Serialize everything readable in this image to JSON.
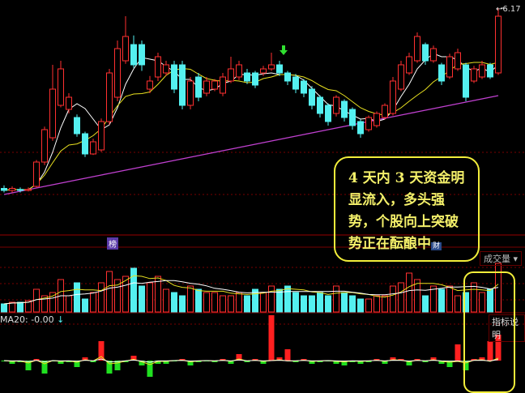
{
  "chart_data": {
    "type": "candlestick",
    "max_price_label": "6.17",
    "candle_colors": {
      "up": "#ff3030",
      "down": "#54f0f0"
    },
    "candles": [
      [
        4.39,
        4.37,
        4.42,
        4.35
      ],
      [
        4.37,
        4.39,
        4.41,
        4.35
      ],
      [
        4.38,
        4.37,
        4.4,
        4.35
      ],
      [
        4.37,
        4.38,
        4.4,
        4.36
      ],
      [
        4.41,
        4.65,
        4.67,
        4.4
      ],
      [
        4.65,
        4.97,
        5.0,
        4.62
      ],
      [
        4.89,
        5.37,
        5.61,
        4.86
      ],
      [
        5.21,
        5.57,
        5.65,
        5.19
      ],
      [
        5.17,
        5.29,
        5.33,
        5.13
      ],
      [
        5.09,
        4.93,
        5.12,
        4.9
      ],
      [
        4.93,
        4.73,
        4.95,
        4.7
      ],
      [
        4.73,
        4.85,
        4.88,
        4.72
      ],
      [
        4.77,
        5.05,
        5.08,
        4.75
      ],
      [
        5.05,
        5.53,
        5.57,
        5.02
      ],
      [
        5.29,
        5.77,
        5.85,
        5.25
      ],
      [
        5.65,
        5.89,
        6.09,
        5.62
      ],
      [
        5.81,
        5.61,
        5.9,
        5.58
      ],
      [
        5.81,
        5.61,
        5.85,
        5.55
      ],
      [
        5.37,
        5.45,
        5.5,
        5.33
      ],
      [
        5.49,
        5.69,
        5.73,
        5.45
      ],
      [
        5.53,
        5.61,
        5.65,
        5.5
      ],
      [
        5.61,
        5.37,
        5.65,
        5.33
      ],
      [
        5.61,
        5.21,
        5.65,
        5.17
      ],
      [
        5.21,
        5.45,
        5.49,
        5.17
      ],
      [
        5.49,
        5.29,
        5.53,
        5.25
      ],
      [
        5.33,
        5.45,
        5.49,
        5.3
      ],
      [
        5.37,
        5.45,
        5.47,
        5.35
      ],
      [
        5.33,
        5.49,
        5.53,
        5.3
      ],
      [
        5.45,
        5.57,
        5.69,
        5.43
      ],
      [
        5.49,
        5.61,
        5.65,
        5.46
      ],
      [
        5.53,
        5.45,
        5.57,
        5.42
      ],
      [
        5.53,
        5.41,
        5.55,
        5.38
      ],
      [
        5.53,
        5.57,
        5.6,
        5.5
      ],
      [
        5.57,
        5.61,
        5.73,
        5.55
      ],
      [
        5.61,
        5.53,
        5.65,
        5.5
      ],
      [
        5.53,
        5.45,
        5.55,
        5.41
      ],
      [
        5.49,
        5.37,
        5.52,
        5.33
      ],
      [
        5.45,
        5.33,
        5.47,
        5.29
      ],
      [
        5.37,
        5.21,
        5.4,
        5.17
      ],
      [
        5.29,
        5.13,
        5.31,
        5.09
      ],
      [
        5.21,
        5.05,
        5.23,
        5.01
      ],
      [
        5.13,
        5.29,
        5.31,
        5.1
      ],
      [
        5.25,
        5.09,
        5.27,
        5.05
      ],
      [
        5.17,
        5.01,
        5.19,
        4.97
      ],
      [
        5.05,
        4.93,
        5.07,
        4.89
      ],
      [
        4.97,
        5.09,
        5.11,
        4.95
      ],
      [
        5.01,
        5.13,
        5.15,
        4.99
      ],
      [
        5.09,
        5.21,
        5.23,
        5.07
      ],
      [
        5.13,
        5.45,
        5.49,
        5.11
      ],
      [
        5.37,
        5.61,
        5.65,
        5.35
      ],
      [
        5.53,
        5.69,
        5.73,
        5.51
      ],
      [
        5.65,
        5.89,
        5.93,
        5.63
      ],
      [
        5.81,
        5.65,
        5.83,
        5.61
      ],
      [
        5.65,
        5.77,
        5.8,
        5.63
      ],
      [
        5.61,
        5.45,
        5.63,
        5.41
      ],
      [
        5.49,
        5.69,
        5.72,
        5.47
      ],
      [
        5.57,
        5.73,
        5.77,
        5.55
      ],
      [
        5.61,
        5.29,
        5.63,
        5.25
      ],
      [
        5.45,
        5.57,
        5.6,
        5.43
      ],
      [
        5.49,
        5.61,
        5.65,
        5.47
      ],
      [
        5.61,
        5.49,
        5.63,
        5.47
      ],
      [
        5.53,
        6.09,
        6.17,
        5.51
      ]
    ],
    "volume": [
      5,
      6,
      6,
      7,
      14,
      10,
      12,
      20,
      10,
      18,
      8,
      12,
      18,
      25,
      20,
      22,
      27,
      16,
      18,
      22,
      14,
      12,
      10,
      16,
      14,
      12,
      12,
      10,
      10,
      12,
      10,
      14,
      12,
      16,
      14,
      16,
      12,
      10,
      10,
      12,
      10,
      16,
      12,
      10,
      8,
      8,
      10,
      10,
      16,
      18,
      24,
      20,
      10,
      16,
      14,
      16,
      10,
      12,
      18,
      12,
      14,
      30
    ],
    "volume_label": "成交量",
    "indicator_label": "MA20: -0.00",
    "indicator_values": [
      0,
      -2,
      -1,
      -6,
      1,
      -8,
      0,
      -2,
      -1,
      -4,
      2,
      -1,
      10,
      -8,
      -6,
      -1,
      3,
      -3,
      -10,
      -2,
      -2,
      0,
      1,
      -3,
      -1,
      0,
      -1,
      1,
      -2,
      4,
      -1,
      1,
      -2,
      0,
      2,
      -1,
      -1,
      1,
      -2,
      -1,
      0,
      -2,
      -3,
      -1,
      -2,
      -1,
      1,
      -2,
      2,
      1,
      -3,
      1,
      -1,
      2,
      -2,
      -4,
      -2,
      -6,
      1,
      2,
      -2,
      6
    ],
    "indicator_spike_values": {
      "12": 12,
      "33": 28,
      "35": 7,
      "56": 10,
      "60": 12,
      "61": 16
    },
    "indicator_button": "指标说明",
    "badges": {
      "top": "榜",
      "cai": "财"
    },
    "annotation": "4 天内 3 天资金明显流入，多头强势，个股向上突破势正在酝酿中"
  }
}
